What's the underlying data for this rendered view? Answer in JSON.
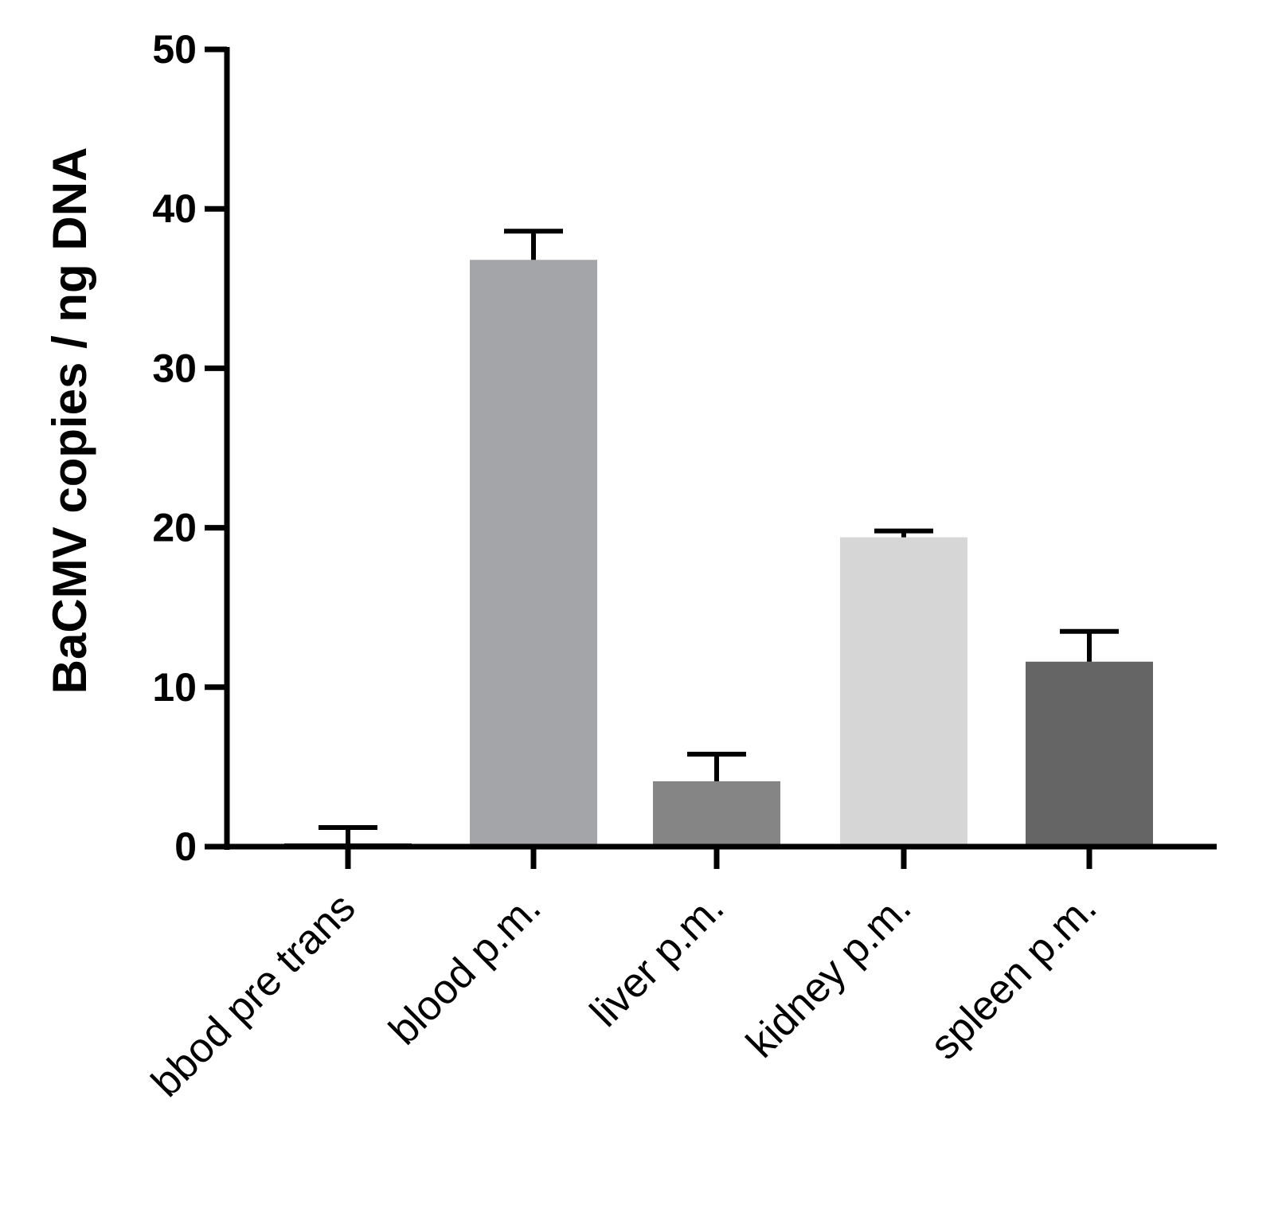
{
  "chart_data": {
    "type": "bar",
    "title": "",
    "xlabel": "",
    "ylabel": "BaCMV copies / ng DNA",
    "ylim": [
      0,
      50
    ],
    "yticks": [
      0,
      10,
      20,
      30,
      40,
      50
    ],
    "grid": false,
    "legend": "none",
    "categories": [
      "bbod pre trans",
      "blood p.m.",
      "liver p.m.",
      "kidney p.m.",
      "spleen p.m."
    ],
    "values": [
      0.2,
      36.8,
      4.1,
      19.4,
      11.6
    ],
    "error_plus": [
      1.0,
      1.8,
      1.7,
      0.4,
      1.9
    ],
    "colors": [
      "#000000",
      "#a4a5a8",
      "#858585",
      "#d6d6d6",
      "#656565"
    ],
    "axis_color": "#000000"
  }
}
